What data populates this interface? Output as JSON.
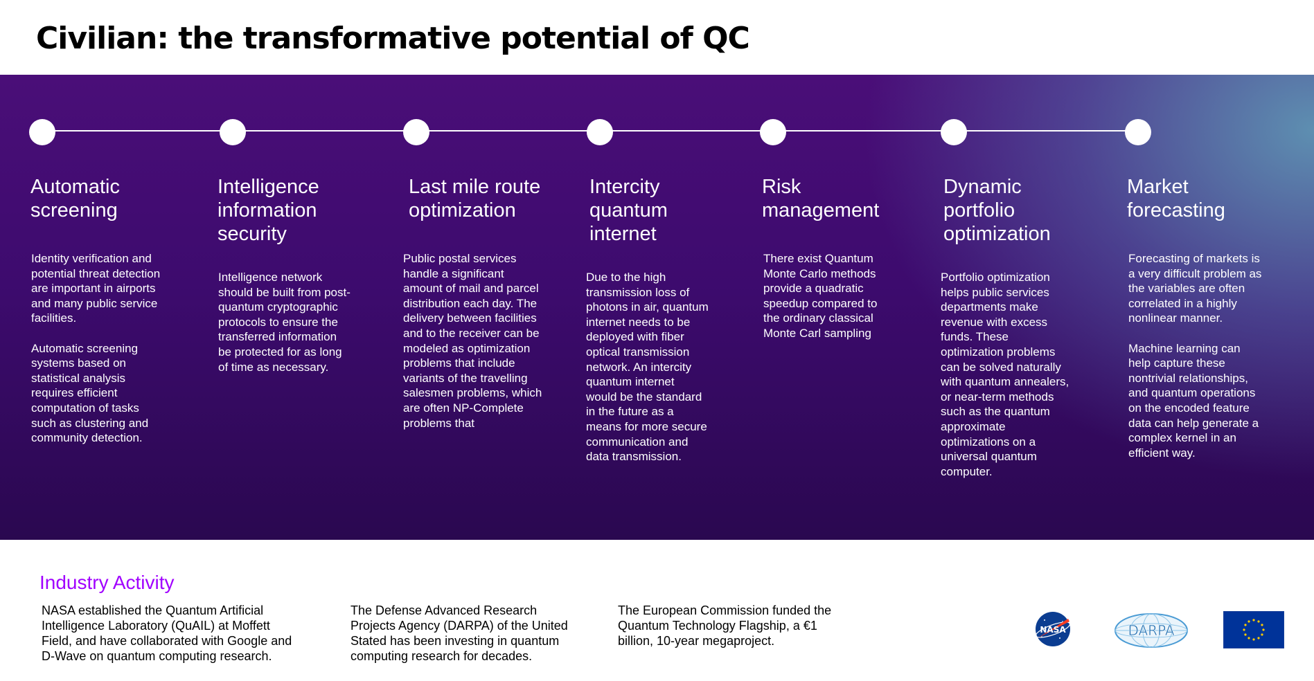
{
  "title": "Civilian: the transformative potential of QC",
  "colors": {
    "accent": "#a100ff",
    "band_dark": "#3d0b6e",
    "band_light": "#5f96b4"
  },
  "timeline": [
    {
      "heading": "Automatic\nscreening",
      "body": "Identity verification and\npotential threat detection\nare important in airports\nand many public service\nfacilities.\n\nAutomatic screening\nsystems based on\nstatistical analysis\nrequires efficient\ncomputation of tasks\nsuch as clustering and\ncommunity detection."
    },
    {
      "heading": "Intelligence\ninformation\nsecurity",
      "body": "Intelligence network\nshould be built from post-\nquantum cryptographic\nprotocols to ensure the\ntransferred information\nbe protected for as long\nof time as necessary."
    },
    {
      "heading": "Last mile route\noptimization",
      "body": "Public postal services\nhandle a significant\namount of mail and parcel\ndistribution each day. The\ndelivery between facilities\nand to the receiver can be\nmodeled as optimization\nproblems that include\nvariants of the travelling\nsalesmen problems, which\nare often NP-Complete\nproblems that"
    },
    {
      "heading": "Intercity\nquantum\ninternet",
      "body": "Due to the high\ntransmission loss of\nphotons in air, quantum\ninternet needs to be\ndeployed with fiber\noptical transmission\nnetwork. An intercity\nquantum internet\nwould be the standard\nin the future as a\nmeans for more secure\ncommunication and\ndata transmission."
    },
    {
      "heading": "Risk\nmanagement",
      "body": "There exist Quantum\nMonte Carlo methods\nprovide a quadratic\nspeedup compared to\nthe ordinary classical\nMonte Carl sampling"
    },
    {
      "heading": "Dynamic\nportfolio\noptimization",
      "body": "Portfolio optimization\nhelps public services\ndepartments make\nrevenue with excess\nfunds. These\noptimization problems\ncan be solved naturally\nwith quantum annealers,\nor near-term methods\nsuch as the quantum\napproximate\noptimizations on a\nuniversal quantum\ncomputer."
    },
    {
      "heading": "Market\nforecasting",
      "body": "Forecasting of markets is\na very difficult problem as\nthe variables are often\ncorrelated in a highly\nnonlinear manner.\n\nMachine learning can\nhelp capture these\nnontrivial relationships,\nand quantum operations\non the encoded feature\ndata can help generate a\ncomplex kernel in an\nefficient way."
    }
  ],
  "industry": {
    "heading": "Industry Activity",
    "items": [
      "NASA established the Quantum Artificial\nIntelligence Laboratory (QuAIL) at Moffett\nField, and have collaborated with Google and\nD-Wave on quantum computing research.",
      "The Defense Advanced Research\nProjects Agency (DARPA) of the United\nStated has been investing in quantum\ncomputing research for decades.",
      "The European Commission funded the\nQuantum Technology Flagship, a €1\nbillion, 10-year megaproject."
    ],
    "logos": {
      "nasa": "NASA",
      "darpa": "DARPA",
      "eu_icon": "eu-flag-icon"
    }
  }
}
